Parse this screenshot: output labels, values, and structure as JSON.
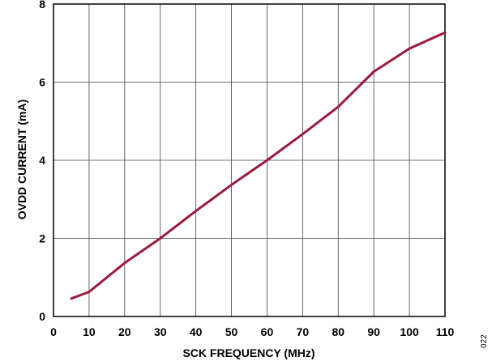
{
  "chart_data": {
    "type": "line",
    "title": "",
    "xlabel": "SCK FREQUENCY (MHz)",
    "ylabel": "OVDD CURRENT (mA)",
    "xlim": [
      0,
      110
    ],
    "ylim": [
      0,
      8
    ],
    "xticks": [
      0,
      10,
      20,
      30,
      40,
      50,
      60,
      70,
      80,
      90,
      100,
      110
    ],
    "yticks": [
      0,
      2,
      4,
      6,
      8
    ],
    "xtick_labels": [
      "0",
      "10",
      "20",
      "30",
      "40",
      "50",
      "60",
      "70",
      "80",
      "90",
      "100",
      "110"
    ],
    "ytick_labels": [
      "0",
      "2",
      "4",
      "6",
      "8"
    ],
    "grid": true,
    "series": [
      {
        "color": "#9b1b3e",
        "x": [
          5,
          10,
          20,
          30,
          40,
          50,
          60,
          70,
          80,
          90,
          100,
          110
        ],
        "y": [
          0.46,
          0.63,
          1.37,
          2.0,
          2.7,
          3.37,
          4.0,
          4.67,
          5.37,
          6.27,
          6.86,
          7.27
        ]
      }
    ]
  },
  "figure_id": "022"
}
